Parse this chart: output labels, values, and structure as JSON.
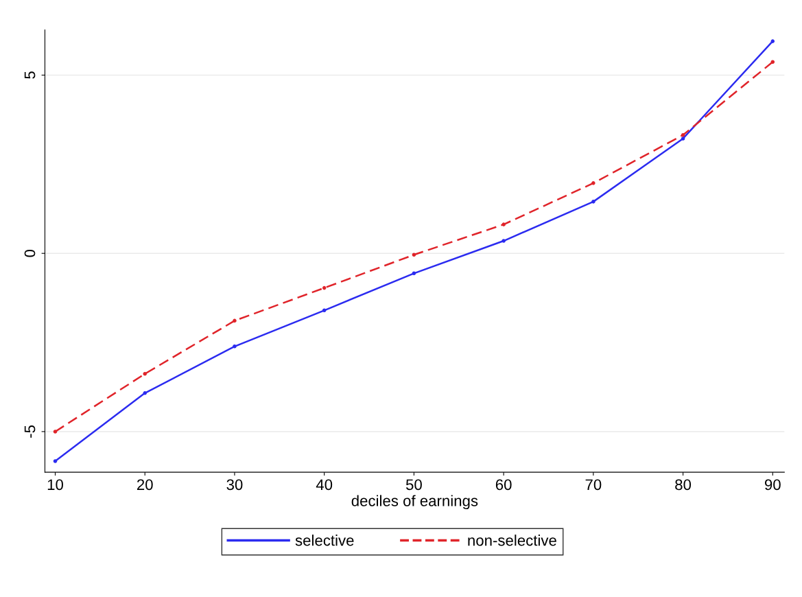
{
  "chart_data": {
    "type": "line",
    "xlabel": "deciles of earnings",
    "x": [
      10,
      20,
      30,
      40,
      50,
      60,
      70,
      80,
      90
    ],
    "series": [
      {
        "name": "selective",
        "color": "#2b2bf0",
        "line_style": "solid",
        "values": [
          -5.83,
          -3.92,
          -2.61,
          -1.6,
          -0.56,
          0.35,
          1.45,
          3.22,
          5.95
        ]
      },
      {
        "name": "non-selective",
        "color": "#e0242a",
        "line_style": "dashed",
        "values": [
          -5.0,
          -3.38,
          -1.89,
          -0.97,
          -0.04,
          0.81,
          1.97,
          3.32,
          5.37
        ]
      }
    ],
    "xlim": [
      8.85,
      91.3
    ],
    "ylim": [
      -6.14,
      6.27
    ],
    "xticks": [
      10,
      20,
      30,
      40,
      50,
      60,
      70,
      80,
      90
    ],
    "yticks": [
      -5,
      0,
      5
    ],
    "grid": "y",
    "legend": "bottom",
    "marker": "circle"
  }
}
